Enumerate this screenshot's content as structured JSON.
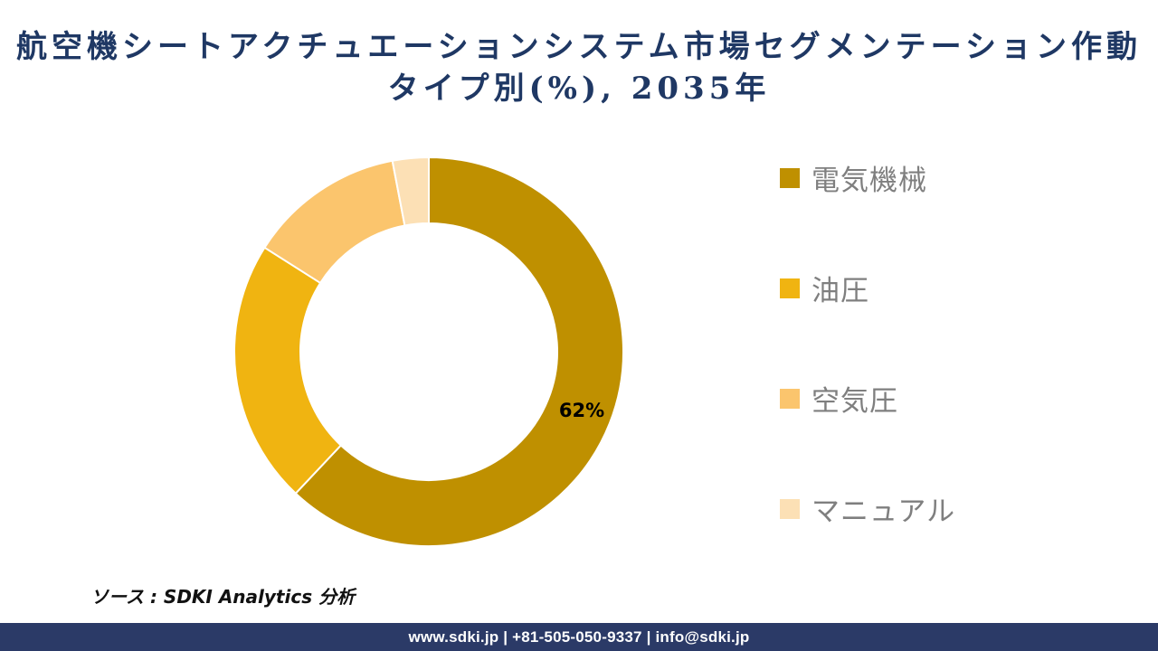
{
  "title": "航空機シートアクチュエーションシステム市場セグメンテーション作動\nタイプ別(%), 2035年",
  "source": "ソース : SDKI Analytics 分析",
  "footer": {
    "text": "www.sdki.jp | +81-505-050-9337 | info@sdki.jp",
    "background": "#2B3A67"
  },
  "colors": {
    "title_text": "#1F3864",
    "legend_text": "#7F7F7F",
    "data_label_text": "#000000",
    "separator_stroke": "#FFFFFF"
  },
  "chart_data": {
    "type": "pie",
    "subtype": "donut",
    "title": "航空機シートアクチュエーションシステム市場セグメンテーション作動タイプ別(%), 2035年",
    "unit": "%",
    "year": "2035年",
    "start_angle_deg": 0,
    "direction": "clockwise",
    "inner_radius_ratio": 0.66,
    "legend_position": "right",
    "segments": [
      {
        "label": "電気機械",
        "value": 62,
        "color": "#BF9000"
      },
      {
        "label": "油圧",
        "value": 22,
        "color": "#F0B411"
      },
      {
        "label": "空気圧",
        "value": 13,
        "color": "#FBC56D"
      },
      {
        "label": "マニュアル",
        "value": 3,
        "color": "#FCE0B5"
      }
    ],
    "data_labels": [
      {
        "segment": "電気機械",
        "text": "62%"
      }
    ]
  }
}
